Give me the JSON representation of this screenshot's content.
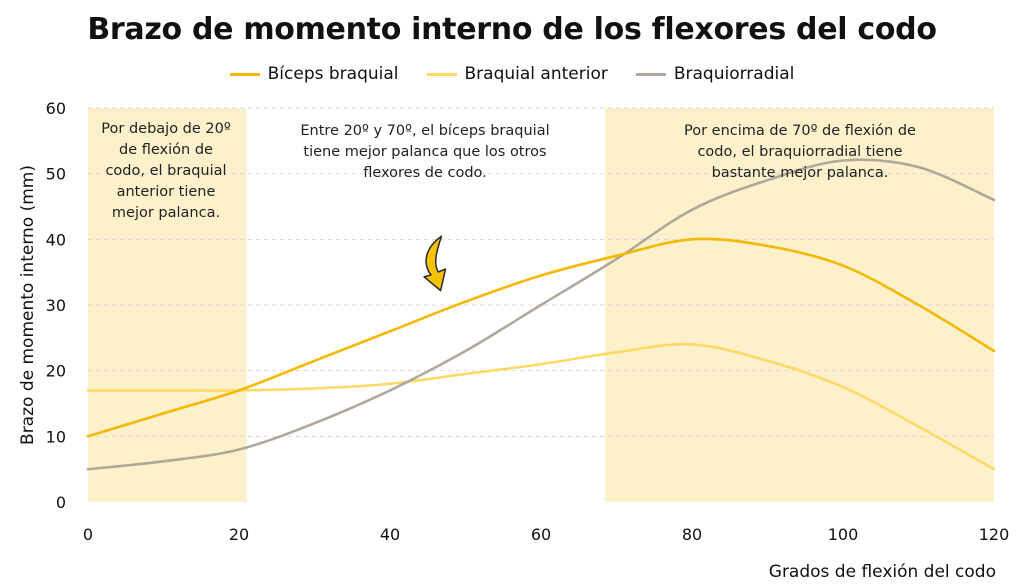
{
  "chart_data": {
    "type": "line",
    "title": "Brazo de momento interno de los flexores del codo",
    "xlabel": "Grados de flexión del codo",
    "ylabel": "Brazo de momento interno (mm)",
    "xlim": [
      0,
      120
    ],
    "ylim": [
      0,
      60
    ],
    "xticks": [
      0,
      20,
      40,
      60,
      80,
      100,
      120
    ],
    "yticks": [
      0,
      10,
      20,
      30,
      40,
      50,
      60
    ],
    "grid": "horizontal dashed",
    "legend_position": "top",
    "x": [
      0,
      10,
      20,
      30,
      40,
      50,
      60,
      70,
      80,
      90,
      100,
      110,
      120
    ],
    "series": [
      {
        "name": "Bíceps braquial",
        "color": "#f5b800",
        "values": [
          10,
          13.5,
          17,
          21.5,
          26,
          30.5,
          34.5,
          37.5,
          40,
          39,
          36,
          30,
          23
        ]
      },
      {
        "name": "Braquial anterior",
        "color": "#ffd966",
        "values": [
          17,
          17,
          17,
          17.3,
          18,
          19.5,
          21,
          22.8,
          24,
          21.5,
          17.5,
          11.5,
          5
        ]
      },
      {
        "name": "Braquiorradial",
        "color": "#b0a89a",
        "values": [
          5,
          6.2,
          8,
          12,
          17,
          23,
          30,
          37,
          44.5,
          49,
          52,
          51,
          46
        ]
      }
    ],
    "shaded_regions": [
      {
        "x_range": [
          0,
          21
        ],
        "color": "#fdf1cc"
      },
      {
        "x_range": [
          68.5,
          120
        ],
        "color": "#fdf1cc"
      }
    ],
    "annotations": [
      {
        "lines": [
          "Por debajo de 20º",
          "de flexión de",
          "codo, el braquial",
          "anterior tiene",
          "mejor palanca."
        ]
      },
      {
        "lines": [
          "Entre 20º y 70º, el bíceps braquial",
          "tiene mejor palanca que los otros",
          "flexores de codo."
        ]
      },
      {
        "lines": [
          "Por encima de 70º de flexión de",
          "codo, el braquiorradial tiene",
          "bastante mejor palanca."
        ]
      }
    ],
    "arrow_icon": "curved-arrow-icon"
  }
}
